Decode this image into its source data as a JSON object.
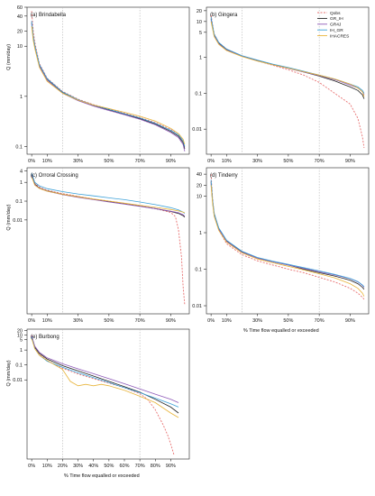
{
  "legend_entries": [
    "Qobs",
    "GR_IH",
    "GR4J",
    "IH_GR",
    "IHACRES"
  ],
  "series_colors": {
    "Qobs": "#e87070",
    "GR_IH": "#222222",
    "GR4J": "#8e5ab8",
    "IH_GR": "#3aa0d8",
    "IHACRES": "#e8b43a"
  },
  "chart_data": [
    {
      "type": "line",
      "panel_title": "(a) Brindabella",
      "ylabel": "Q (mm/day)",
      "xlabel": "",
      "yscale": "log",
      "ylim": [
        0.07,
        60
      ],
      "ytick_labels": [
        "60",
        "40",
        "20",
        "10",
        "1",
        "0.1"
      ],
      "ytick_values": [
        60,
        40,
        20,
        10,
        1,
        0.1
      ],
      "xlim": [
        -3,
        102
      ],
      "xtick_labels": [
        "0%",
        "10%",
        "30%",
        "50%",
        "70%",
        "90%"
      ],
      "xtick_values": [
        0,
        10,
        30,
        50,
        70,
        90
      ],
      "reference_lines_x": [
        20,
        70
      ],
      "series": [
        {
          "name": "Qobs",
          "dashed": true,
          "x": [
            0,
            1,
            2,
            5,
            10,
            20,
            30,
            40,
            50,
            60,
            70,
            80,
            90,
            95,
            98,
            99
          ],
          "y": [
            50,
            20,
            12,
            4.5,
            2.3,
            1.25,
            0.88,
            0.68,
            0.56,
            0.46,
            0.38,
            0.3,
            0.22,
            0.17,
            0.13,
            0.1
          ]
        },
        {
          "name": "GR_IH",
          "x": [
            0,
            1,
            2,
            5,
            10,
            20,
            30,
            40,
            50,
            60,
            70,
            80,
            90,
            95,
            98,
            99
          ],
          "y": [
            30,
            15,
            10,
            4.2,
            2.2,
            1.2,
            0.85,
            0.66,
            0.54,
            0.44,
            0.36,
            0.28,
            0.2,
            0.16,
            0.12,
            0.09
          ]
        },
        {
          "name": "GR4J",
          "x": [
            0,
            1,
            2,
            5,
            10,
            20,
            30,
            40,
            50,
            60,
            70,
            80,
            90,
            95,
            98,
            99
          ],
          "y": [
            28,
            14,
            9.5,
            4.0,
            2.1,
            1.15,
            0.82,
            0.64,
            0.52,
            0.43,
            0.35,
            0.27,
            0.19,
            0.15,
            0.11,
            0.08
          ]
        },
        {
          "name": "IH_GR",
          "x": [
            0,
            1,
            2,
            5,
            10,
            20,
            30,
            40,
            50,
            60,
            70,
            80,
            90,
            95,
            98,
            99
          ],
          "y": [
            32,
            16,
            10.5,
            4.3,
            2.25,
            1.22,
            0.86,
            0.67,
            0.55,
            0.45,
            0.37,
            0.29,
            0.21,
            0.17,
            0.13,
            0.1
          ]
        },
        {
          "name": "IHACRES",
          "x": [
            0,
            1,
            2,
            5,
            10,
            20,
            30,
            40,
            50,
            60,
            70,
            80,
            90,
            95,
            98,
            99
          ],
          "y": [
            25,
            13,
            9,
            3.8,
            2.0,
            1.15,
            0.84,
            0.67,
            0.57,
            0.48,
            0.4,
            0.32,
            0.23,
            0.18,
            0.14,
            0.11
          ]
        }
      ]
    },
    {
      "type": "line",
      "panel_title": "(b) Gingera",
      "ylabel": "",
      "xlabel": "",
      "yscale": "log",
      "ylim": [
        0.002,
        25
      ],
      "ytick_labels": [
        "20",
        "10",
        "5",
        "1",
        "0.1",
        "0.01"
      ],
      "ytick_values": [
        20,
        10,
        5,
        1,
        0.1,
        0.01
      ],
      "xlim": [
        -3,
        102
      ],
      "xtick_labels": [
        "0%",
        "10%",
        "30%",
        "50%",
        "70%",
        "90%"
      ],
      "xtick_values": [
        0,
        10,
        30,
        50,
        70,
        90
      ],
      "reference_lines_x": [
        20,
        70
      ],
      "series": [
        {
          "name": "Qobs",
          "dashed": true,
          "x": [
            0,
            2,
            5,
            10,
            20,
            30,
            40,
            50,
            60,
            70,
            80,
            90,
            95,
            98,
            99
          ],
          "y": [
            15,
            4.5,
            2.6,
            1.7,
            1.1,
            0.8,
            0.6,
            0.45,
            0.32,
            0.2,
            0.1,
            0.05,
            0.02,
            0.006,
            0.003
          ]
        },
        {
          "name": "GR_IH",
          "x": [
            0,
            2,
            5,
            10,
            20,
            30,
            40,
            50,
            60,
            70,
            80,
            90,
            95,
            98,
            99
          ],
          "y": [
            12,
            4.2,
            2.5,
            1.65,
            1.1,
            0.82,
            0.63,
            0.5,
            0.39,
            0.3,
            0.22,
            0.15,
            0.12,
            0.09,
            0.07
          ]
        },
        {
          "name": "GR4J",
          "x": [
            0,
            2,
            5,
            10,
            20,
            30,
            40,
            50,
            60,
            70,
            80,
            90,
            95,
            98,
            99
          ],
          "y": [
            11,
            4.0,
            2.4,
            1.6,
            1.08,
            0.8,
            0.62,
            0.49,
            0.39,
            0.31,
            0.24,
            0.17,
            0.14,
            0.11,
            0.09
          ]
        },
        {
          "name": "IH_GR",
          "x": [
            0,
            2,
            5,
            10,
            20,
            30,
            40,
            50,
            60,
            70,
            80,
            90,
            95,
            98,
            99
          ],
          "y": [
            13,
            4.4,
            2.6,
            1.7,
            1.12,
            0.84,
            0.65,
            0.52,
            0.41,
            0.32,
            0.25,
            0.18,
            0.15,
            0.12,
            0.1
          ]
        },
        {
          "name": "IHACRES",
          "x": [
            0,
            2,
            5,
            10,
            20,
            30,
            40,
            50,
            60,
            70,
            80,
            90,
            95,
            98,
            99
          ],
          "y": [
            10,
            3.8,
            2.3,
            1.55,
            1.05,
            0.79,
            0.62,
            0.5,
            0.4,
            0.32,
            0.25,
            0.18,
            0.14,
            0.11,
            0.08
          ]
        }
      ]
    },
    {
      "type": "line",
      "panel_title": "(c) Orroral Crossing",
      "ylabel": "Q (mm/day)",
      "xlabel": "",
      "yscale": "log",
      "ylim": [
        1e-07,
        6
      ],
      "ytick_labels": [
        "4",
        "1",
        "0.1",
        "0.01"
      ],
      "ytick_values": [
        4,
        1,
        0.1,
        0.01
      ],
      "xlim": [
        -3,
        102
      ],
      "xtick_labels": [
        "0%",
        "10%",
        "30%",
        "50%",
        "70%",
        "90%"
      ],
      "xtick_values": [
        0,
        10,
        30,
        50,
        70,
        90
      ],
      "reference_lines_x": [
        20,
        70
      ],
      "series": [
        {
          "name": "Qobs",
          "dashed": true,
          "x": [
            0,
            2,
            5,
            10,
            20,
            30,
            40,
            50,
            60,
            70,
            80,
            90,
            93,
            95,
            97,
            98,
            99
          ],
          "y": [
            3,
            0.9,
            0.55,
            0.38,
            0.25,
            0.18,
            0.13,
            0.1,
            0.075,
            0.055,
            0.04,
            0.025,
            0.015,
            0.003,
            0.0001,
            3e-06,
            3e-07
          ]
        },
        {
          "name": "GR_IH",
          "x": [
            0,
            2,
            5,
            10,
            20,
            30,
            40,
            50,
            60,
            70,
            80,
            90,
            95,
            98,
            99
          ],
          "y": [
            2.5,
            0.8,
            0.5,
            0.35,
            0.23,
            0.17,
            0.125,
            0.095,
            0.072,
            0.054,
            0.04,
            0.028,
            0.022,
            0.017,
            0.014
          ]
        },
        {
          "name": "GR4J",
          "x": [
            0,
            2,
            5,
            10,
            20,
            30,
            40,
            50,
            60,
            70,
            80,
            90,
            95,
            98,
            99
          ],
          "y": [
            2.3,
            0.75,
            0.48,
            0.34,
            0.22,
            0.16,
            0.12,
            0.09,
            0.07,
            0.053,
            0.04,
            0.029,
            0.024,
            0.019,
            0.016
          ]
        },
        {
          "name": "IH_GR",
          "x": [
            0,
            2,
            5,
            10,
            20,
            30,
            40,
            50,
            60,
            70,
            80,
            90,
            95,
            98,
            99
          ],
          "y": [
            3.2,
            1.0,
            0.65,
            0.46,
            0.32,
            0.24,
            0.19,
            0.15,
            0.12,
            0.09,
            0.065,
            0.045,
            0.034,
            0.026,
            0.022
          ]
        },
        {
          "name": "IHACRES",
          "x": [
            0,
            2,
            5,
            10,
            20,
            30,
            40,
            50,
            60,
            70,
            80,
            90,
            95,
            98,
            99
          ],
          "y": [
            2.0,
            0.7,
            0.47,
            0.34,
            0.23,
            0.17,
            0.13,
            0.1,
            0.078,
            0.06,
            0.047,
            0.036,
            0.03,
            0.026,
            0.024
          ]
        }
      ]
    },
    {
      "type": "line",
      "panel_title": "(d) Tinderry",
      "ylabel": "",
      "xlabel": "% Time flow equalled or exceeded",
      "yscale": "log",
      "ylim": [
        0.006,
        60
      ],
      "ytick_labels": [
        "40",
        "20",
        "10",
        "1",
        "0.1",
        "0.01"
      ],
      "ytick_values": [
        40,
        20,
        10,
        1,
        0.1,
        0.01
      ],
      "xlim": [
        -3,
        102
      ],
      "xtick_labels": [
        "0%",
        "10%",
        "30%",
        "50%",
        "70%",
        "90%"
      ],
      "xtick_values": [
        0,
        10,
        30,
        50,
        70,
        90
      ],
      "reference_lines_x": [
        20,
        70
      ],
      "series": [
        {
          "name": "Qobs",
          "dashed": true,
          "x": [
            0,
            1,
            2,
            5,
            10,
            20,
            30,
            40,
            50,
            60,
            70,
            80,
            90,
            95,
            98,
            99
          ],
          "y": [
            40,
            8,
            3.5,
            1.2,
            0.5,
            0.25,
            0.17,
            0.13,
            0.1,
            0.08,
            0.06,
            0.045,
            0.03,
            0.022,
            0.017,
            0.015
          ]
        },
        {
          "name": "GR_IH",
          "x": [
            0,
            1,
            2,
            5,
            10,
            20,
            30,
            40,
            50,
            60,
            70,
            80,
            90,
            95,
            98,
            99
          ],
          "y": [
            25,
            7,
            3.2,
            1.3,
            0.6,
            0.3,
            0.2,
            0.16,
            0.13,
            0.1,
            0.08,
            0.065,
            0.05,
            0.04,
            0.032,
            0.028
          ]
        },
        {
          "name": "GR4J",
          "x": [
            0,
            1,
            2,
            5,
            10,
            20,
            30,
            40,
            50,
            60,
            70,
            80,
            90,
            95,
            98,
            99
          ],
          "y": [
            22,
            6.5,
            3.0,
            1.25,
            0.58,
            0.29,
            0.2,
            0.16,
            0.13,
            0.105,
            0.085,
            0.07,
            0.055,
            0.045,
            0.036,
            0.032
          ]
        },
        {
          "name": "IH_GR",
          "x": [
            0,
            1,
            2,
            5,
            10,
            20,
            30,
            40,
            50,
            60,
            70,
            80,
            90,
            95,
            98,
            99
          ],
          "y": [
            28,
            7.5,
            3.4,
            1.35,
            0.62,
            0.31,
            0.21,
            0.165,
            0.135,
            0.11,
            0.09,
            0.072,
            0.056,
            0.046,
            0.037,
            0.033
          ]
        },
        {
          "name": "IHACRES",
          "x": [
            0,
            1,
            2,
            5,
            10,
            20,
            30,
            40,
            50,
            60,
            70,
            80,
            90,
            95,
            98,
            99
          ],
          "y": [
            20,
            6,
            2.8,
            1.15,
            0.55,
            0.28,
            0.19,
            0.15,
            0.12,
            0.095,
            0.075,
            0.058,
            0.04,
            0.03,
            0.022,
            0.018
          ]
        }
      ]
    },
    {
      "type": "line",
      "panel_title": "(e) Burbong",
      "ylabel": "Q (mm/day)",
      "xlabel": "% Time flow equalled or exceeded",
      "yscale": "log",
      "ylim": [
        5e-08,
        25
      ],
      "ytick_labels": [
        "20",
        "10",
        "5",
        "1",
        "0.1",
        "0.01"
      ],
      "ytick_values": [
        20,
        10,
        5,
        1,
        0.1,
        0.01
      ],
      "xlim": [
        -3,
        102
      ],
      "xtick_labels": [
        "0%",
        "10%",
        "20%",
        "30%",
        "40%",
        "50%",
        "60%",
        "70%",
        "80%",
        "90%"
      ],
      "xtick_values": [
        0,
        10,
        20,
        30,
        40,
        50,
        60,
        70,
        80,
        90
      ],
      "reference_lines_x": [
        20,
        70
      ],
      "series": [
        {
          "name": "Qobs",
          "dashed": true,
          "x": [
            0,
            2,
            5,
            10,
            20,
            30,
            40,
            50,
            60,
            70,
            75,
            80,
            85,
            88,
            90,
            92
          ],
          "y": [
            10,
            1.5,
            0.5,
            0.2,
            0.06,
            0.025,
            0.012,
            0.006,
            0.003,
            0.0012,
            0.0005,
            0.0001,
            1e-05,
            2e-06,
            5e-07,
            1e-07
          ]
        },
        {
          "name": "GR_IH",
          "x": [
            0,
            2,
            5,
            10,
            20,
            30,
            40,
            50,
            60,
            70,
            80,
            90,
            95
          ],
          "y": [
            8,
            1.6,
            0.6,
            0.25,
            0.09,
            0.04,
            0.018,
            0.008,
            0.0035,
            0.0015,
            0.0005,
            0.00015,
            6e-05
          ]
        },
        {
          "name": "GR4J",
          "x": [
            0,
            2,
            5,
            10,
            20,
            30,
            40,
            50,
            60,
            70,
            80,
            90,
            95
          ],
          "y": [
            9,
            1.8,
            0.7,
            0.3,
            0.12,
            0.055,
            0.026,
            0.012,
            0.0055,
            0.0025,
            0.0011,
            0.0005,
            0.0003
          ]
        },
        {
          "name": "IH_GR",
          "x": [
            0,
            2,
            5,
            10,
            20,
            30,
            40,
            50,
            60,
            70,
            80,
            90,
            95
          ],
          "y": [
            7.5,
            1.3,
            0.45,
            0.18,
            0.07,
            0.03,
            0.014,
            0.0065,
            0.003,
            0.0014,
            0.0006,
            0.00025,
            0.00015
          ]
        },
        {
          "name": "IHACRES",
          "x": [
            0,
            2,
            5,
            10,
            15,
            20,
            25,
            30,
            35,
            40,
            45,
            50,
            60,
            70,
            80,
            90,
            95
          ],
          "y": [
            6,
            1.2,
            0.45,
            0.2,
            0.1,
            0.05,
            0.008,
            0.004,
            0.005,
            0.004,
            0.005,
            0.004,
            0.002,
            0.0008,
            0.0003,
            6e-05,
            3e-05
          ]
        }
      ]
    }
  ]
}
